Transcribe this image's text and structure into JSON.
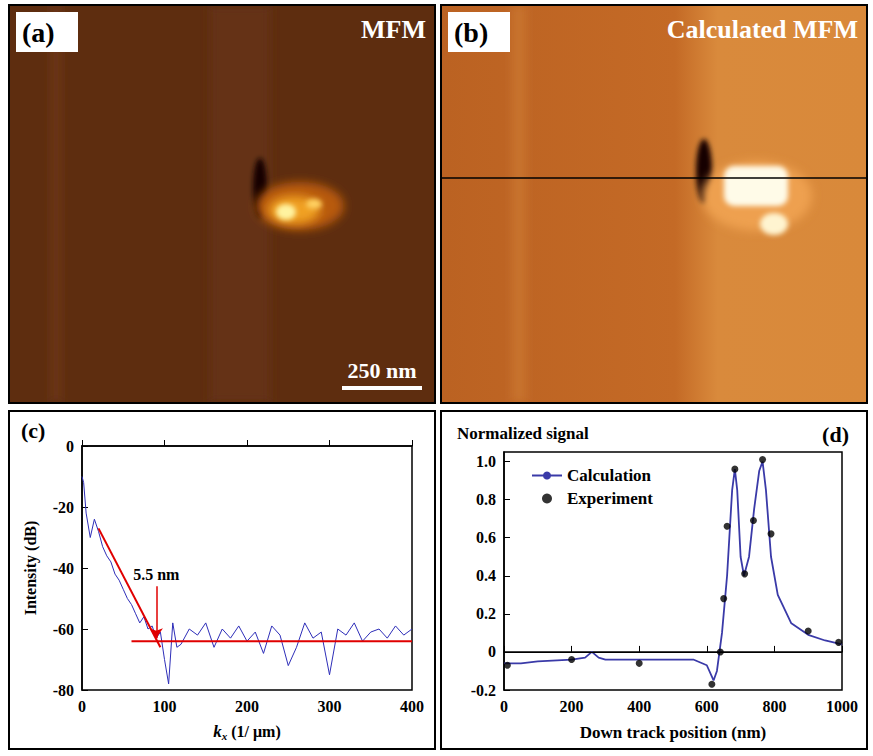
{
  "images": [
    {
      "label": "(a)",
      "title": "MFM",
      "scale_bar": "250 nm"
    },
    {
      "label": "(b)",
      "title": "Calculated MFM"
    }
  ],
  "chart_data": [
    {
      "type": "line",
      "label": "(c)",
      "y_label": "Intensity (dB)",
      "x_label": {
        "symbol": "k",
        "subscript": "x",
        "unit": "(1/ μm)"
      },
      "xlim": [
        0,
        400
      ],
      "xticks": [
        0,
        100,
        200,
        300,
        400
      ],
      "ylim": [
        -80,
        0
      ],
      "yticks": [
        -80,
        -60,
        -40,
        -20,
        0
      ],
      "grid": false,
      "series": [
        {
          "color": "#2e2eb8",
          "x": [
            0,
            2,
            5,
            10,
            15,
            20,
            25,
            30,
            35,
            40,
            45,
            50,
            55,
            60,
            65,
            70,
            75,
            80,
            85,
            90,
            95,
            100,
            105,
            110,
            115,
            120,
            130,
            140,
            150,
            160,
            170,
            180,
            190,
            200,
            210,
            220,
            230,
            240,
            250,
            260,
            270,
            280,
            290,
            300,
            310,
            320,
            330,
            340,
            350,
            360,
            370,
            380,
            390,
            400
          ],
          "values": [
            -10,
            -12,
            -22,
            -30,
            -24,
            -28,
            -33,
            -36,
            -38,
            -42,
            -44,
            -47,
            -50,
            -52,
            -55,
            -58,
            -56,
            -60,
            -59,
            -63,
            -61,
            -70,
            -78,
            -58,
            -66,
            -65,
            -60,
            -62,
            -58,
            -66,
            -60,
            -63,
            -59,
            -64,
            -61,
            -68,
            -59,
            -62,
            -72,
            -66,
            -58,
            -63,
            -61,
            -75,
            -60,
            -62,
            -58,
            -64,
            -61,
            -60,
            -63,
            -59,
            -62,
            -60
          ]
        },
        {
          "color": "#e00000",
          "x": [
            20,
            95
          ],
          "values": [
            -27,
            -66
          ]
        },
        {
          "color": "#e00000",
          "x": [
            60,
            400
          ],
          "values": [
            -64,
            -64
          ]
        }
      ],
      "annotation": {
        "text": "5.5 nm",
        "arrow_from": [
          90,
          -46
        ],
        "arrow_to": [
          90,
          -63
        ]
      }
    },
    {
      "type": "line",
      "label": "(d)",
      "title": "Normalized signal",
      "x_label": "Down track position (nm)",
      "xlim": [
        0,
        1000
      ],
      "xticks": [
        0,
        200,
        400,
        600,
        800,
        1000
      ],
      "ylim": [
        -0.2,
        1.05
      ],
      "yticks": [
        -0.2,
        0,
        0.2,
        0.4,
        0.6,
        0.8,
        {
          "value": 1,
          "label": "1.0"
        }
      ],
      "grid": false,
      "legend": "upper left",
      "hline": 0,
      "series": [
        {
          "name": "Calculation",
          "type": "line",
          "color": "#3a3aa8",
          "marker": "none",
          "x": [
            0,
            50,
            100,
            200,
            240,
            260,
            280,
            300,
            400,
            500,
            560,
            600,
            620,
            630,
            645,
            660,
            675,
            683,
            690,
            700,
            710,
            725,
            740,
            755,
            765,
            775,
            790,
            810,
            850,
            900,
            950,
            1000
          ],
          "values": [
            -0.06,
            -0.06,
            -0.05,
            -0.04,
            -0.03,
            0.0,
            -0.03,
            -0.04,
            -0.04,
            -0.04,
            -0.04,
            -0.07,
            -0.15,
            -0.1,
            0.1,
            0.4,
            0.85,
            0.96,
            0.85,
            0.5,
            0.4,
            0.5,
            0.75,
            0.95,
            1.0,
            0.85,
            0.5,
            0.3,
            0.15,
            0.09,
            0.06,
            0.04
          ]
        },
        {
          "name": "Experiment",
          "type": "scatter",
          "color": "#000000",
          "marker": "circle",
          "x": [
            10,
            200,
            400,
            615,
            640,
            650,
            660,
            683,
            712,
            738,
            765,
            790,
            900,
            990
          ],
          "values": [
            -0.07,
            -0.04,
            -0.06,
            -0.17,
            0.0,
            0.28,
            0.66,
            0.96,
            0.41,
            0.69,
            1.01,
            0.62,
            0.11,
            0.05
          ]
        }
      ]
    }
  ]
}
